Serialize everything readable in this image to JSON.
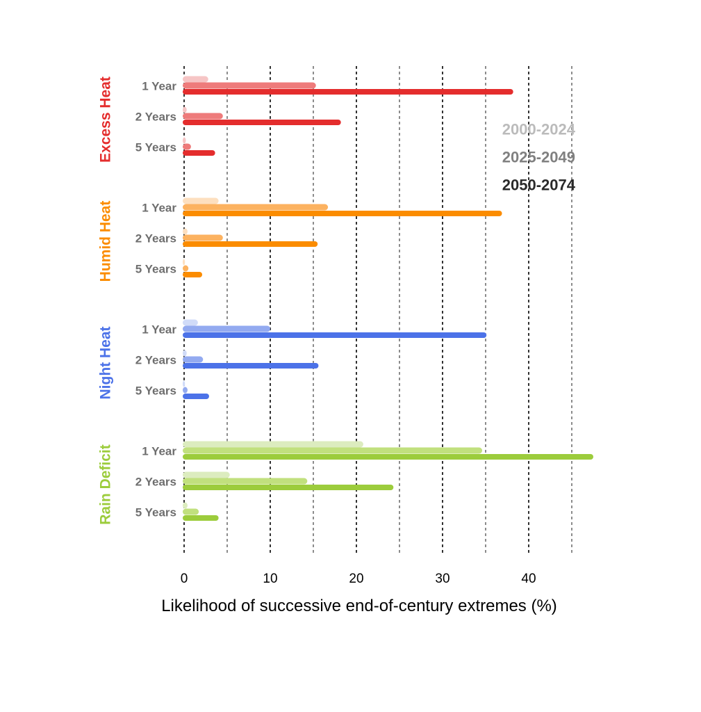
{
  "chart_data": {
    "type": "bar",
    "orientation": "horizontal",
    "xlabel": "Likelihood of successive end-of-century extremes (%)",
    "xlim": [
      0,
      47.5
    ],
    "x_ticks": [
      0,
      10,
      20,
      30,
      40
    ],
    "x_ticks_text": [
      "0",
      "10",
      "20",
      "30",
      "40"
    ],
    "grid_major": [
      0,
      10,
      20,
      30,
      40
    ],
    "grid_minor": [
      5,
      15,
      25,
      35,
      45
    ],
    "legend_position": "right",
    "series": [
      {
        "name": "2000-2024",
        "color": "#bbbbbb"
      },
      {
        "name": "2025-2049",
        "color": "#808080"
      },
      {
        "name": "2050-2074",
        "color": "#2a2a2a"
      }
    ],
    "categories": [
      {
        "name": "Excess Heat",
        "color": "#e42d2d",
        "colors": [
          "#f6c5c5",
          "#ee7b7b",
          "#e42d2d"
        ],
        "rows": [
          {
            "label": "1 Year",
            "values": [
              2.8,
              15.3,
              38.2
            ]
          },
          {
            "label": "2 Years",
            "values": [
              0.3,
              4.5,
              18.2
            ]
          },
          {
            "label": "5 Years",
            "values": [
              0.2,
              0.8,
              3.6
            ]
          }
        ]
      },
      {
        "name": "Humid Heat",
        "color": "#fb8c00",
        "colors": [
          "#fddfbf",
          "#fcb260",
          "#fb8c00"
        ],
        "rows": [
          {
            "label": "1 Year",
            "values": [
              4.0,
              16.7,
              36.9
            ]
          },
          {
            "label": "2 Years",
            "values": [
              0.4,
              4.5,
              15.5
            ]
          },
          {
            "label": "5 Years",
            "values": [
              0.1,
              0.5,
              2.1
            ]
          }
        ]
      },
      {
        "name": "Night Heat",
        "color": "#4c72e8",
        "colors": [
          "#d0dbf8",
          "#93aaf0",
          "#4c72e8"
        ],
        "rows": [
          {
            "label": "1 Year",
            "values": [
              1.6,
              10.0,
              35.1
            ]
          },
          {
            "label": "2 Years",
            "values": [
              0.3,
              2.2,
              15.6
            ]
          },
          {
            "label": "5 Years",
            "values": [
              0.1,
              0.4,
              2.9
            ]
          }
        ]
      },
      {
        "name": "Rain Deficit",
        "color": "#9ccc3c",
        "colors": [
          "#dcecbf",
          "#c1e07e",
          "#9ccc3c"
        ],
        "rows": [
          {
            "label": "1 Year",
            "values": [
              20.8,
              34.6,
              47.5
            ]
          },
          {
            "label": "2 Years",
            "values": [
              5.3,
              14.3,
              24.3
            ]
          },
          {
            "label": "5 Years",
            "values": [
              0.4,
              1.7,
              4.0
            ]
          }
        ]
      }
    ]
  }
}
